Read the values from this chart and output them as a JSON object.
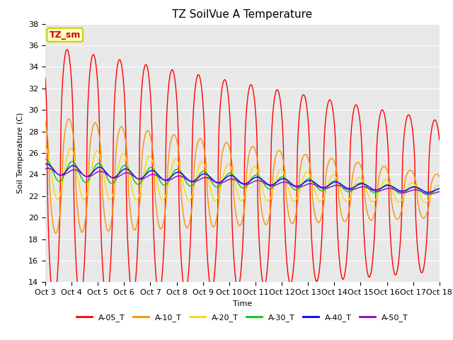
{
  "title": "TZ SoilVue A Temperature",
  "xlabel": "Time",
  "ylabel": "Soil Temperature (C)",
  "ylim": [
    14,
    38
  ],
  "yticks": [
    14,
    16,
    18,
    20,
    22,
    24,
    26,
    28,
    30,
    32,
    34,
    36,
    38
  ],
  "xtick_labels": [
    "Oct 3",
    "Oct 4",
    "Oct 5",
    "Oct 6",
    "Oct 7",
    "Oct 8",
    "Oct 9",
    "Oct 10",
    "Oct 11",
    "Oct 12",
    "Oct 13",
    "Oct 14",
    "Oct 15",
    "Oct 16",
    "Oct 17",
    "Oct 18"
  ],
  "series_order": [
    "A-05_T",
    "A-10_T",
    "A-20_T",
    "A-30_T",
    "A-40_T",
    "A-50_T"
  ],
  "series_colors": {
    "A-05_T": "#FF0000",
    "A-10_T": "#FF8C00",
    "A-20_T": "#FFD700",
    "A-30_T": "#00CC00",
    "A-40_T": "#0000FF",
    "A-50_T": "#9400D3"
  },
  "linewidth": 1.0,
  "legend_label": "TZ_sm",
  "plot_bg": "#E8E8E8",
  "fig_bg": "#FFFFFF",
  "grid_color": "#FFFFFF",
  "title_fontsize": 11,
  "label_fontsize": 8,
  "tick_fontsize": 8
}
